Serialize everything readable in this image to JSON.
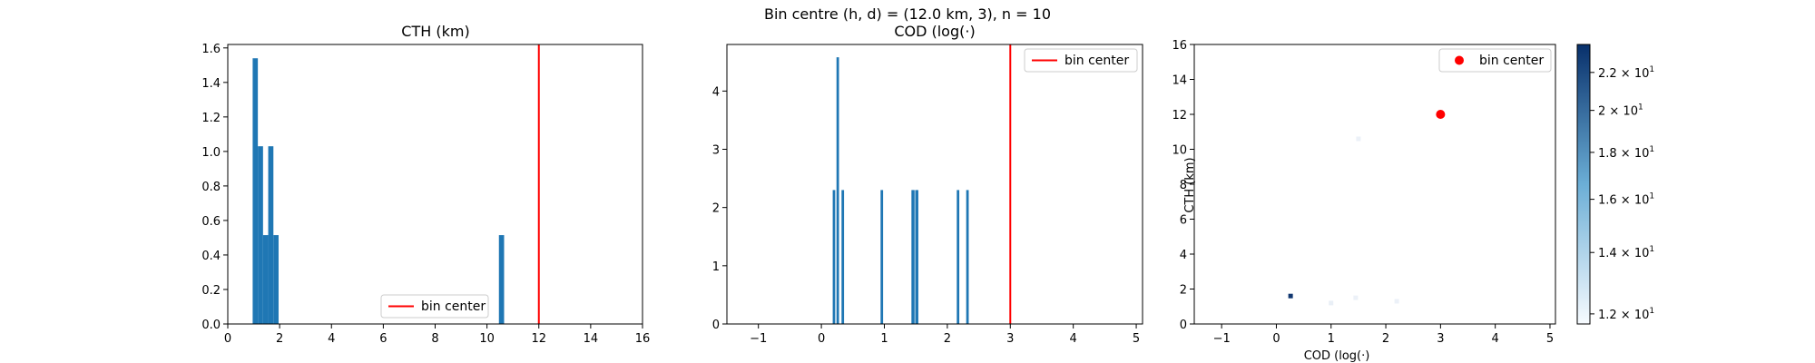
{
  "suptitle": "Bin centre (h, d) = (12.0 km, 3), n = 10",
  "chart_data": [
    {
      "type": "bar",
      "title": "CTH (km)",
      "xlabel": "",
      "ylabel": "",
      "xlim": [
        0,
        16
      ],
      "ylim": [
        0,
        1.62
      ],
      "xticks": [
        0,
        2,
        4,
        6,
        8,
        10,
        12,
        14,
        16
      ],
      "yticks": [
        0.0,
        0.2,
        0.4,
        0.6,
        0.8,
        1.0,
        1.2,
        1.4,
        1.6
      ],
      "ytick_labels": [
        "0.0",
        "0.2",
        "0.4",
        "0.6",
        "0.8",
        "1.0",
        "1.2",
        "1.4",
        "1.6"
      ],
      "bins": [
        {
          "x0": 0.96,
          "x1": 1.16,
          "value": 1.54
        },
        {
          "x0": 1.16,
          "x1": 1.36,
          "value": 1.03
        },
        {
          "x0": 1.36,
          "x1": 1.56,
          "value": 0.515
        },
        {
          "x0": 1.56,
          "x1": 1.76,
          "value": 1.03
        },
        {
          "x0": 1.76,
          "x1": 1.96,
          "value": 0.515
        },
        {
          "x0": 10.46,
          "x1": 10.66,
          "value": 0.515
        }
      ],
      "bar_color": "#1f77b4",
      "reference_line": {
        "x": 12,
        "color": "#ff0000",
        "label": "bin center"
      },
      "legend": {
        "entries": [
          "bin center"
        ],
        "placement": "lower-right"
      }
    },
    {
      "type": "bar",
      "title": "COD (log(·)",
      "xlabel": "",
      "ylabel": "",
      "xlim": [
        -1.5,
        5.1
      ],
      "ylim": [
        0,
        4.8
      ],
      "xticks": [
        -1,
        0,
        1,
        2,
        3,
        4,
        5
      ],
      "xtick_labels": [
        "−1",
        "0",
        "1",
        "2",
        "3",
        "4",
        "5"
      ],
      "yticks": [
        0,
        1,
        2,
        3,
        4
      ],
      "bins": [
        {
          "x0": 0.18,
          "x1": 0.22,
          "value": 2.3
        },
        {
          "x0": 0.24,
          "x1": 0.28,
          "value": 4.58
        },
        {
          "x0": 0.32,
          "x1": 0.36,
          "value": 2.3
        },
        {
          "x0": 0.94,
          "x1": 0.98,
          "value": 2.3
        },
        {
          "x0": 1.43,
          "x1": 1.48,
          "value": 2.3
        },
        {
          "x0": 1.49,
          "x1": 1.54,
          "value": 2.3
        },
        {
          "x0": 2.15,
          "x1": 2.19,
          "value": 2.3
        },
        {
          "x0": 2.3,
          "x1": 2.34,
          "value": 2.3
        }
      ],
      "bar_color": "#1f77b4",
      "reference_line": {
        "x": 3,
        "color": "#ff0000",
        "label": "bin center"
      },
      "legend": {
        "entries": [
          "bin center"
        ],
        "placement": "upper-right"
      }
    },
    {
      "type": "heatmap",
      "title": "",
      "xlabel": "COD (log(·)",
      "ylabel": "CTH (km)",
      "xlim": [
        -1.5,
        5.1
      ],
      "ylim": [
        0,
        16
      ],
      "xticks": [
        -1,
        0,
        1,
        2,
        3,
        4,
        5
      ],
      "xtick_labels": [
        "−1",
        "0",
        "1",
        "2",
        "3",
        "4",
        "5"
      ],
      "yticks": [
        0,
        2,
        4,
        6,
        8,
        10,
        12,
        14,
        16
      ],
      "cells": [
        {
          "x": 0.26,
          "y": 1.6,
          "value": 23
        },
        {
          "x": 1.0,
          "y": 1.2,
          "value": 12.2
        },
        {
          "x": 1.45,
          "y": 1.5,
          "value": 12.1
        },
        {
          "x": 2.2,
          "y": 1.3,
          "value": 12.1
        },
        {
          "x": 1.5,
          "y": 10.6,
          "value": 12.1
        }
      ],
      "marker": {
        "x": 3,
        "y": 12,
        "color": "#ff0000",
        "label": "bin center"
      },
      "legend": {
        "entries": [
          "bin center"
        ],
        "placement": "upper-right"
      },
      "colorbar": {
        "scale": "log",
        "min": 11.7,
        "max": 23.6,
        "ticks": [
          12,
          14,
          16,
          18,
          20,
          22
        ],
        "tick_labels": [
          {
            "mant": "1.2",
            "exp": "1"
          },
          {
            "mant": "1.4",
            "exp": "1"
          },
          {
            "mant": "1.6",
            "exp": "1"
          },
          {
            "mant": "1.8",
            "exp": "1"
          },
          {
            "mant": "2",
            "exp": "1"
          },
          {
            "mant": "2.2",
            "exp": "1"
          }
        ],
        "cmap": "Blues"
      }
    }
  ]
}
